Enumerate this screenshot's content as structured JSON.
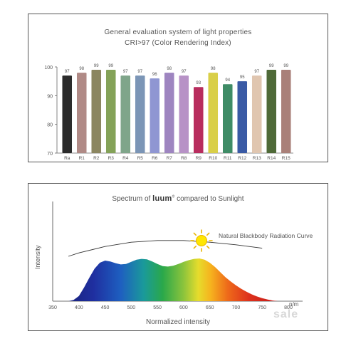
{
  "chart_data": [
    {
      "type": "bar",
      "title": "General evaluation system of light properties",
      "subtitle": "CRI>97 (Color Rendering Index)",
      "categories": [
        "Ra",
        "R1",
        "R2",
        "R3",
        "R4",
        "R5",
        "R6",
        "R7",
        "R8",
        "R9",
        "R10",
        "R11",
        "R12",
        "R13",
        "R14",
        "R15"
      ],
      "values": [
        97,
        98,
        99,
        99,
        97,
        97,
        96,
        98,
        97,
        93,
        98,
        94,
        95,
        97,
        99,
        99
      ],
      "bar_colors": [
        "#2b2b2b",
        "#b08a86",
        "#8b8660",
        "#84a258",
        "#7fa58a",
        "#7b95b6",
        "#8f96d2",
        "#9e85c0",
        "#b792c6",
        "#b82d5e",
        "#d9cf48",
        "#3f8c66",
        "#3a5aa5",
        "#e0c6b0",
        "#4f6a38",
        "#a98079"
      ],
      "yticks": [
        70,
        80,
        90,
        100
      ],
      "ylim": [
        70,
        100
      ],
      "grid": false
    },
    {
      "type": "area",
      "title_prefix": "Spectrum of",
      "brand": "luum",
      "brand_mark": "®",
      "title_suffix": "compared to Sunlight",
      "xlabel": "Normalized intensity",
      "ylabel": "Intensity",
      "x_unit": "n/m",
      "xticks": [
        350,
        400,
        450,
        500,
        550,
        600,
        650,
        700,
        750,
        800
      ],
      "xlim": [
        350,
        800
      ],
      "ylim": [
        0,
        1
      ],
      "series": [
        {
          "x": [
            380,
            390,
            400,
            410,
            420,
            430,
            440,
            450,
            460,
            470,
            480,
            490,
            500,
            510,
            520,
            530,
            540,
            550,
            560,
            570,
            580,
            590,
            600,
            610,
            620,
            630,
            640,
            650,
            660,
            670,
            680,
            690,
            700,
            710,
            720,
            730,
            740,
            750,
            760,
            770,
            780
          ],
          "values": [
            0,
            0.03,
            0.12,
            0.32,
            0.55,
            0.76,
            0.9,
            0.95,
            0.93,
            0.89,
            0.86,
            0.87,
            0.92,
            0.97,
            0.99,
            0.98,
            0.93,
            0.87,
            0.82,
            0.81,
            0.83,
            0.87,
            0.92,
            0.96,
            0.99,
            1.0,
            0.97,
            0.9,
            0.8,
            0.68,
            0.56,
            0.46,
            0.37,
            0.29,
            0.22,
            0.16,
            0.11,
            0.07,
            0.04,
            0.015,
            0
          ]
        },
        {
          "name": "Natural Blackbody Radiation Curve",
          "x": [
            380,
            400,
            450,
            500,
            550,
            600,
            650,
            700,
            750
          ],
          "values": [
            1.05,
            1.13,
            1.28,
            1.38,
            1.42,
            1.42,
            1.38,
            1.32,
            1.24
          ]
        }
      ]
    }
  ],
  "watermark": "sale"
}
